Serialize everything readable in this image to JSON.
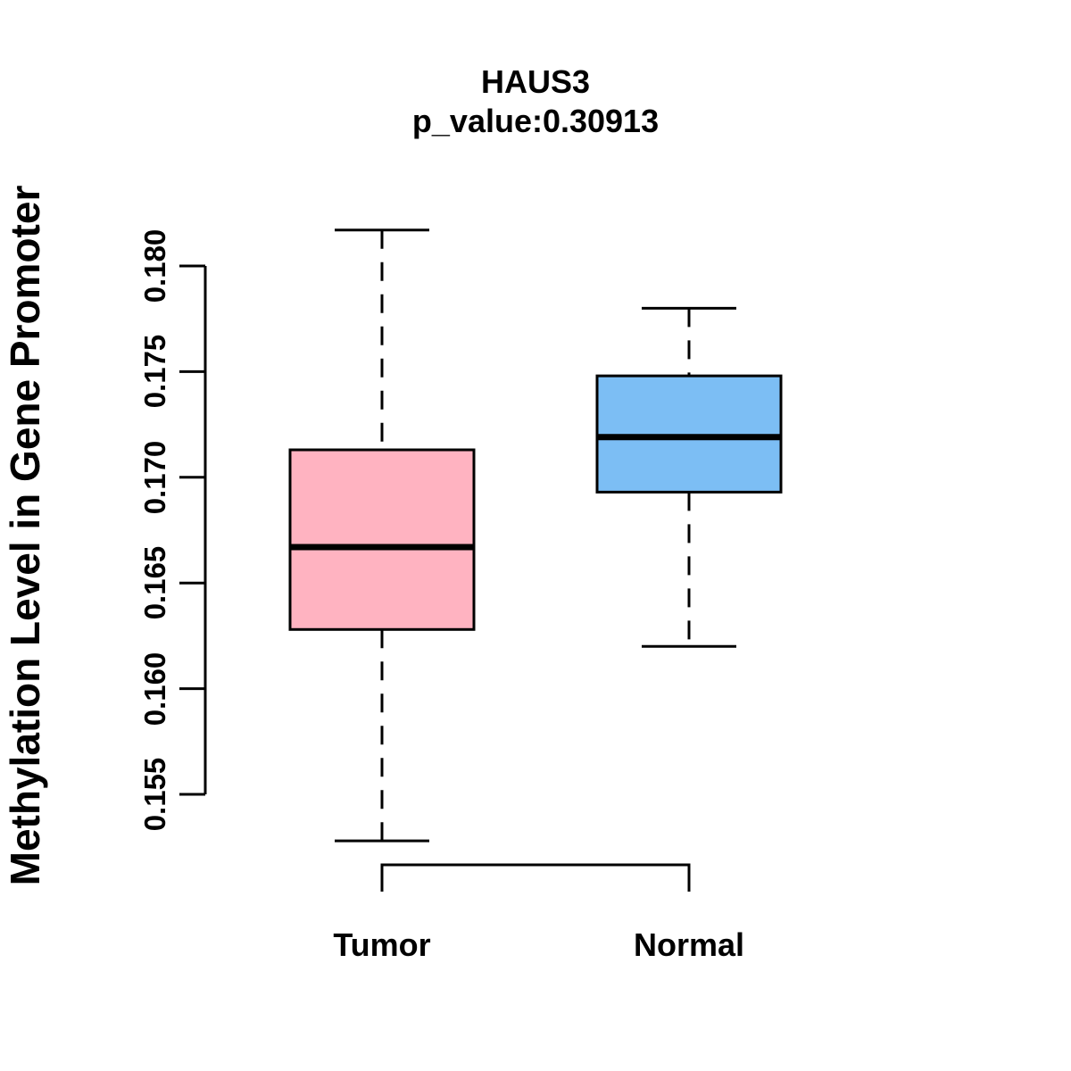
{
  "title": {
    "gene": "HAUS3",
    "pvalue_line": "p_value:0.30913"
  },
  "chart_data": {
    "type": "boxplot",
    "title": "HAUS3",
    "subtitle": "p_value:0.30913",
    "ylabel": "Methylation Level in Gene Promoter",
    "xlabel": "",
    "ylim": [
      0.155,
      0.18
    ],
    "y_ticks": [
      0.155,
      0.16,
      0.165,
      0.17,
      0.175,
      0.18
    ],
    "y_tick_labels": [
      "0.155",
      "0.160",
      "0.165",
      "0.170",
      "0.175",
      "0.180"
    ],
    "categories": [
      "Tumor",
      "Normal"
    ],
    "groups": [
      {
        "label": "Tumor",
        "fill_color": "#FFB3C1",
        "whisker_low": 0.1528,
        "q1": 0.1628,
        "median": 0.1667,
        "q3": 0.1713,
        "whisker_high": 0.1817
      },
      {
        "label": "Normal",
        "fill_color": "#7CBEF4",
        "whisker_low": 0.162,
        "q1": 0.1693,
        "median": 0.1719,
        "q3": 0.1748,
        "whisker_high": 0.178
      }
    ],
    "style": {
      "border_color": "#000000",
      "median_color": "#000000",
      "background": "#FFFFFF",
      "whisker_style": "dashed",
      "grid": false,
      "legend": "none"
    }
  }
}
